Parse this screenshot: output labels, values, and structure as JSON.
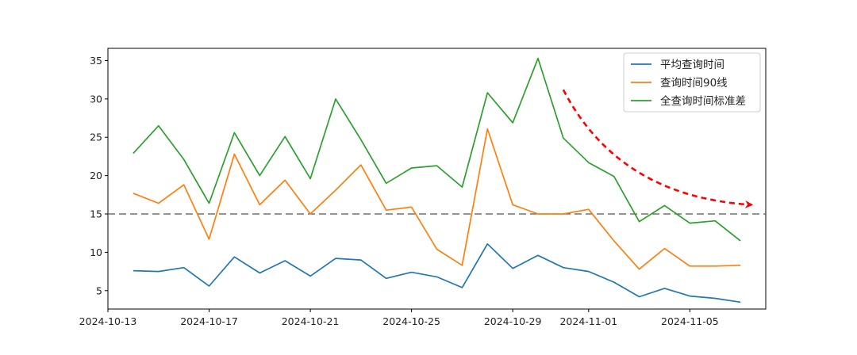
{
  "chart_data": {
    "type": "line",
    "title": "",
    "xlabel": "",
    "ylabel": "",
    "x": [
      "2024-10-14",
      "2024-10-15",
      "2024-10-16",
      "2024-10-17",
      "2024-10-18",
      "2024-10-19",
      "2024-10-20",
      "2024-10-21",
      "2024-10-22",
      "2024-10-23",
      "2024-10-24",
      "2024-10-25",
      "2024-10-26",
      "2024-10-27",
      "2024-10-28",
      "2024-10-29",
      "2024-10-30",
      "2024-10-31",
      "2024-11-01",
      "2024-11-02",
      "2024-11-03",
      "2024-11-04",
      "2024-11-05",
      "2024-11-06",
      "2024-11-07"
    ],
    "xlim": [
      "2024-10-13",
      "2024-11-08"
    ],
    "ylim": [
      2.6,
      36.6
    ],
    "xticks": [
      "2024-10-13",
      "2024-10-17",
      "2024-10-21",
      "2024-10-25",
      "2024-10-29",
      "2024-11-01",
      "2024-11-05"
    ],
    "yticks": [
      5,
      10,
      15,
      20,
      25,
      30,
      35
    ],
    "grid": false,
    "legend_position": "top-right",
    "series": [
      {
        "name": "平均查询时间",
        "color": "#1f77b4",
        "values": [
          7.6,
          7.5,
          8.0,
          5.6,
          9.4,
          7.3,
          8.9,
          6.9,
          9.2,
          9.0,
          6.6,
          7.4,
          6.8,
          5.4,
          11.1,
          7.9,
          9.6,
          8.0,
          7.5,
          6.1,
          4.2,
          5.3,
          4.3,
          4.0,
          3.5
        ]
      },
      {
        "name": "查询时间90线",
        "color": "#ff7f0e",
        "values": [
          17.7,
          16.4,
          18.8,
          11.7,
          22.8,
          16.2,
          19.4,
          15.0,
          18.1,
          21.4,
          15.5,
          15.9,
          10.4,
          8.3,
          26.1,
          16.2,
          15.0,
          15.0,
          15.6,
          11.5,
          7.8,
          10.5,
          8.2,
          8.2,
          8.3
        ]
      },
      {
        "name": "全查询时间标准差",
        "color": "#2ca02c",
        "values": [
          22.9,
          26.5,
          22.1,
          16.4,
          25.6,
          20.0,
          25.1,
          19.6,
          30.0,
          24.7,
          19.0,
          21.0,
          21.3,
          18.5,
          30.8,
          26.9,
          35.3,
          24.9,
          21.7,
          19.9,
          14.0,
          16.1,
          13.8,
          14.1,
          11.5
        ]
      }
    ],
    "reference_line": {
      "y": 15,
      "color": "#555555",
      "style": "dashed"
    },
    "trend_arrow": {
      "color": "#ff0000",
      "style": "dashed",
      "start": [
        "2024-10-31",
        31.2
      ],
      "end": [
        "2024-11-07",
        16.2
      ]
    }
  }
}
